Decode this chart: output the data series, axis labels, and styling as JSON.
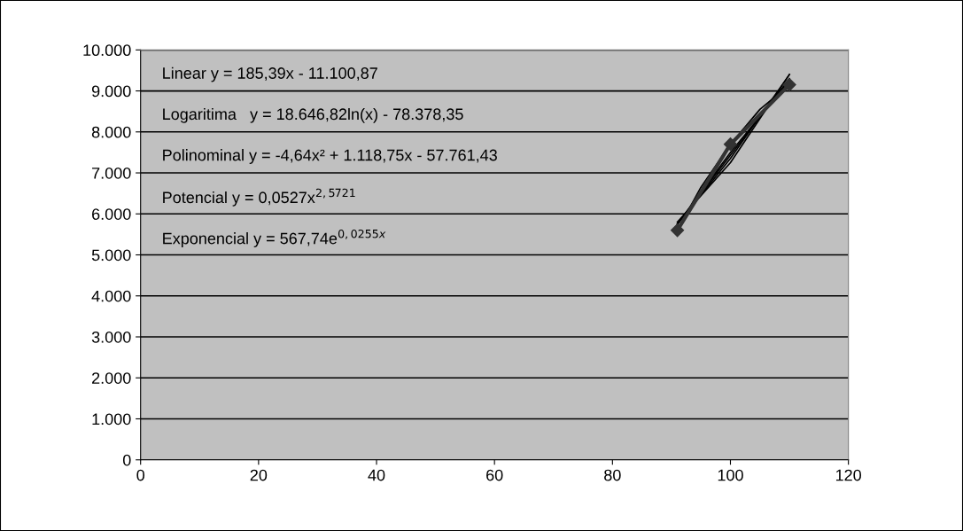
{
  "chart_data": {
    "type": "line",
    "xlim": [
      0,
      120
    ],
    "xticks": [
      0,
      20,
      40,
      60,
      80,
      100,
      120
    ],
    "ylim": [
      0,
      10000
    ],
    "yticks": [
      {
        "value": 0,
        "label": "0"
      },
      {
        "value": 1000,
        "label": "1.000"
      },
      {
        "value": 2000,
        "label": "2.000"
      },
      {
        "value": 3000,
        "label": "3.000"
      },
      {
        "value": 4000,
        "label": "4.000"
      },
      {
        "value": 5000,
        "label": "5.000"
      },
      {
        "value": 6000,
        "label": "6.000"
      },
      {
        "value": 7000,
        "label": "7.000"
      },
      {
        "value": 8000,
        "label": "8.000"
      },
      {
        "value": 9000,
        "label": "9.000"
      },
      {
        "value": 10000,
        "label": "10.000"
      }
    ],
    "grid": "y",
    "legend": false,
    "series": [
      {
        "color": "#333333",
        "marker": "diamond",
        "line_style": "solid",
        "x": [
          91,
          100,
          110
        ],
        "values": [
          5600,
          7700,
          9150
        ]
      },
      {
        "color": "#000000",
        "marker": "none",
        "line_style": "solid",
        "x": [
          91,
          110
        ],
        "values": [
          5750,
          9300
        ]
      },
      {
        "color": "#000000",
        "marker": "none",
        "line_style": "solid",
        "x": [
          91,
          100,
          110
        ],
        "values": [
          5750,
          7500,
          9250
        ]
      },
      {
        "color": "#000000",
        "marker": "none",
        "line_style": "solid",
        "x": [
          91,
          95,
          100,
          105,
          110
        ],
        "values": [
          5600,
          6650,
          7700,
          8550,
          9150
        ]
      },
      {
        "color": "#000000",
        "marker": "none",
        "line_style": "solid",
        "x": [
          91,
          100,
          110
        ],
        "values": [
          5750,
          7350,
          9400
        ]
      },
      {
        "color": "#000000",
        "marker": "none",
        "line_style": "solid",
        "x": [
          91,
          100,
          110
        ],
        "values": [
          5800,
          7250,
          9400
        ]
      }
    ],
    "annotations": [
      "Linear y = 185,39x - 11.100,87",
      "Logaritima   y = 18.646,82ln(x) - 78.378,35",
      "Polinominal y = -4,64x² + 1.118,75x - 57.761,43",
      "Potencial y = 0,0527x$^{2,5721}$",
      "Exponencial y = 567,74e$^{0,0255x}$"
    ]
  }
}
